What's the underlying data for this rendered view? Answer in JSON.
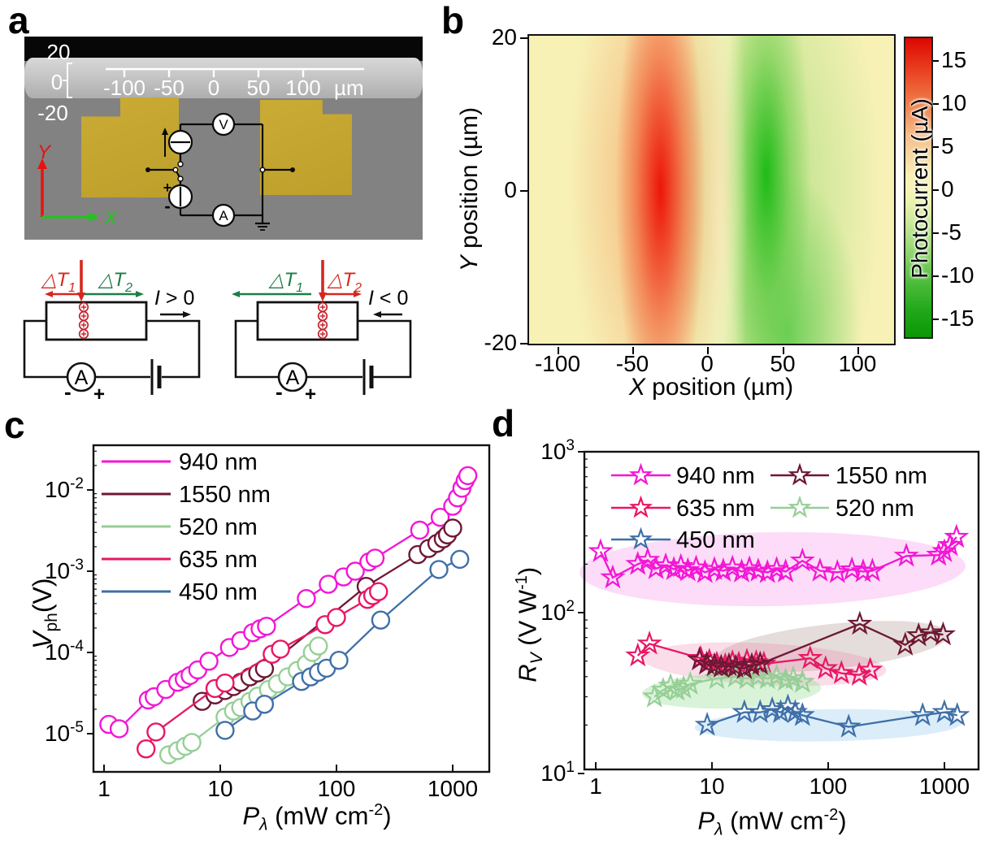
{
  "panels": {
    "a": {
      "panel_label": "a",
      "sem": {
        "y_scale_labels": [
          "20",
          "0",
          "-20"
        ],
        "ruler_labels": [
          "-100",
          "-50",
          "0",
          "50",
          "100"
        ],
        "ruler_unit": "µm",
        "x_axis_label": "X",
        "y_axis_label": "Y",
        "x_axis_color": "#22c31f",
        "y_axis_color": "#e8130c",
        "voltmeter": "V",
        "ammeter": "A",
        "plus": "+",
        "minus": "-"
      },
      "schematics": {
        "left": {
          "dt1": {
            "t": "△T",
            "sub": "1"
          },
          "dt2": {
            "t": "△T",
            "sub": "2"
          },
          "dt1_color": "#d5281e",
          "dt2_color": "#1e7d46",
          "current": {
            "sym": "I",
            "rel": " > 0"
          },
          "ammeter": "A",
          "minus": "-",
          "plus": "+"
        },
        "right": {
          "dt1": {
            "t": "△T",
            "sub": "1"
          },
          "dt2": {
            "t": "△T",
            "sub": "2"
          },
          "dt1_color": "#1e7d46",
          "dt2_color": "#d5281e",
          "current": {
            "sym": "I",
            "rel": " < 0"
          },
          "ammeter": "A",
          "minus": "-",
          "plus": "+"
        }
      }
    },
    "b": {
      "panel_label": "b"
    },
    "c": {
      "panel_label": "c",
      "xlabel_parts": {
        "main": "P",
        "sub": "λ",
        "rest": " (mW cm",
        "sup": "-2",
        "close": ")"
      },
      "ylabel_parts": {
        "main": "V",
        "sub": "ph",
        "rest": "(V)"
      }
    },
    "d": {
      "panel_label": "d",
      "xlabel_parts": {
        "main": "P",
        "sub": "λ",
        "rest": " (mW cm",
        "sup": "-2",
        "close": ")"
      },
      "ylabel_parts": {
        "main": "R",
        "sub": "V",
        "rest": " (V W",
        "sup": "-1",
        "close": ")"
      }
    }
  },
  "chart_data": [
    {
      "id": "b",
      "type": "heatmap",
      "xlabel_main": "X",
      "xlabel_rest": " position  (µm)",
      "ylabel_main": "Y",
      "ylabel_rest": " position (µm)",
      "xlim": [
        -120,
        125
      ],
      "ylim": [
        -20,
        20
      ],
      "x_ticks": [
        "-100",
        "-50",
        "0",
        "50",
        "100"
      ],
      "y_ticks": [
        "20",
        "0",
        "-20"
      ],
      "colorbar": {
        "label": "Photocurrent (µA)",
        "ticks": [
          "15",
          "10",
          "5",
          "0",
          "-5",
          "-10",
          "-15"
        ],
        "max_color": "#dd0700",
        "zero_color": "#f8f0b4",
        "min_color": "#0b9804"
      },
      "features": [
        {
          "name": "positive-photocurrent-lobe",
          "center_x_um": -32,
          "center_y_um": 0,
          "peak_uA": 17,
          "color": "#ec0c02"
        },
        {
          "name": "negative-photocurrent-lobe",
          "center_x_um": 45,
          "center_y_um": 0,
          "peak_uA": -17,
          "color": "#0eb70a"
        }
      ]
    },
    {
      "id": "c",
      "type": "scatter",
      "marker": "circle",
      "x_ticks": [
        {
          "label": "1",
          "v": 1
        },
        {
          "label": "10",
          "v": 10
        },
        {
          "label": "100",
          "v": 100
        },
        {
          "label": "1000",
          "v": 1000
        }
      ],
      "y_ticks": [
        {
          "base": "10",
          "exp": "-2",
          "v": 0.01
        },
        {
          "base": "10",
          "exp": "-3",
          "v": 0.001
        },
        {
          "base": "10",
          "exp": "-4",
          "v": 0.0001
        },
        {
          "base": "10",
          "exp": "-5",
          "v": 1e-05
        }
      ],
      "xlim": [
        0.75,
        2100
      ],
      "ylim": [
        3.4e-06,
        0.035
      ],
      "series": [
        {
          "name": "940 nm",
          "color": "#f316d5",
          "points": [
            [
              1.1,
              1.3e-05
            ],
            [
              1.35,
              1.15e-05
            ],
            [
              2.4,
              2.6e-05
            ],
            [
              2.7,
              2.85e-05
            ],
            [
              3.4,
              3.5e-05
            ],
            [
              4.3,
              4.3e-05
            ],
            [
              4.9,
              4.7e-05
            ],
            [
              5.5,
              5.2e-05
            ],
            [
              6.4,
              6.1e-05
            ],
            [
              8,
              7.8e-05
            ],
            [
              12,
              0.000115
            ],
            [
              15,
              0.00014
            ],
            [
              19,
              0.000175
            ],
            [
              22,
              0.000195
            ],
            [
              25,
              0.00021
            ],
            [
              55,
              0.00046
            ],
            [
              85,
              0.00069
            ],
            [
              115,
              0.00085
            ],
            [
              145,
              0.001
            ],
            [
              190,
              0.0013
            ],
            [
              215,
              0.00145
            ],
            [
              520,
              0.0032
            ],
            [
              780,
              0.0046
            ],
            [
              1000,
              0.0063
            ],
            [
              1100,
              0.008
            ],
            [
              1200,
              0.0105
            ],
            [
              1280,
              0.013
            ],
            [
              1350,
              0.015
            ]
          ]
        },
        {
          "name": "1550 nm",
          "color": "#6e1834",
          "points": [
            [
              7,
              2.5e-05
            ],
            [
              9,
              3e-05
            ],
            [
              11,
              3.4e-05
            ],
            [
              13,
              3.8e-05
            ],
            [
              15,
              4.3e-05
            ],
            [
              18,
              5e-05
            ],
            [
              21,
              5.6e-05
            ],
            [
              24,
              6.3e-05
            ],
            [
              180,
              0.00065
            ],
            [
              500,
              0.0016
            ],
            [
              620,
              0.0019
            ],
            [
              730,
              0.0022
            ],
            [
              830,
              0.0025
            ],
            [
              900,
              0.0028
            ],
            [
              1000,
              0.0034
            ]
          ]
        },
        {
          "name": "520 nm",
          "color": "#96cf96",
          "points": [
            [
              3.6,
              5.5e-06
            ],
            [
              4.3,
              6.2e-06
            ],
            [
              5,
              7e-06
            ],
            [
              5.7,
              7.8e-06
            ],
            [
              11,
              1.6e-05
            ],
            [
              13,
              1.9e-05
            ],
            [
              15,
              2.1e-05
            ],
            [
              18,
              2.5e-05
            ],
            [
              21,
              2.9e-05
            ],
            [
              26,
              3.5e-05
            ],
            [
              31,
              4.1e-05
            ],
            [
              38,
              5e-05
            ],
            [
              46,
              6e-05
            ],
            [
              55,
              7.2e-05
            ],
            [
              62,
              0.0001
            ],
            [
              70,
              0.00012
            ]
          ]
        },
        {
          "name": "635 nm",
          "color": "#e81765",
          "points": [
            [
              2.3,
              6.5e-06
            ],
            [
              2.8,
              1.05e-05
            ],
            [
              9,
              3.6e-05
            ],
            [
              11,
              4.2e-05
            ],
            [
              28,
              9.5e-05
            ],
            [
              33,
              0.00011
            ],
            [
              80,
              0.00022
            ],
            [
              100,
              0.00027
            ],
            [
              185,
              0.00045
            ],
            [
              205,
              0.0005
            ],
            [
              230,
              0.00056
            ]
          ]
        },
        {
          "name": "450 nm",
          "color": "#3f6fa8",
          "points": [
            [
              11,
              1.1e-05
            ],
            [
              19,
              1.9e-05
            ],
            [
              24,
              2.3e-05
            ],
            [
              50,
              4.4e-05
            ],
            [
              60,
              5e-05
            ],
            [
              70,
              5.7e-05
            ],
            [
              82,
              6.4e-05
            ],
            [
              105,
              8e-05
            ],
            [
              240,
              0.00025
            ],
            [
              760,
              0.00105
            ],
            [
              1150,
              0.0014
            ]
          ]
        }
      ]
    },
    {
      "id": "d",
      "type": "scatter",
      "marker": "star",
      "x_ticks": [
        {
          "label": "1",
          "v": 1
        },
        {
          "label": "10",
          "v": 10
        },
        {
          "label": "100",
          "v": 100
        },
        {
          "label": "1000",
          "v": 1000
        }
      ],
      "y_ticks": [
        {
          "base": "10",
          "exp": "3",
          "v": 1000
        },
        {
          "base": "10",
          "exp": "2",
          "v": 100
        },
        {
          "base": "10",
          "exp": "1",
          "v": 10
        }
      ],
      "xlim": [
        0.8,
        2100
      ],
      "ylim": [
        10,
        1000
      ],
      "legend_rows": [
        [
          "940 nm",
          "1550 nm"
        ],
        [
          "635 nm",
          "520 nm"
        ],
        [
          "450 nm"
        ]
      ],
      "ellipses": [
        {
          "series": "940 nm",
          "cx_log": 1.52,
          "cy_log": 2.27,
          "rx_log": 1.66,
          "ry_log": 0.23,
          "rot": -1,
          "color": "rgba(246,140,232,0.30)"
        },
        {
          "series": "1550 nm",
          "cx_log": 2.04,
          "cy_log": 1.79,
          "rx_log": 1.01,
          "ry_log": 0.14,
          "rot": -6,
          "color": "rgba(150,120,110,0.25)"
        },
        {
          "series": "635 nm",
          "cx_log": 1.45,
          "cy_log": 1.68,
          "rx_log": 1.05,
          "ry_log": 0.13,
          "rot": 3,
          "color": "rgba(235,120,165,0.25)"
        },
        {
          "series": "520 nm",
          "cx_log": 1.17,
          "cy_log": 1.515,
          "rx_log": 0.77,
          "ry_log": 0.11,
          "rot": -2,
          "color": "rgba(130,215,130,0.30)"
        },
        {
          "series": "450 nm",
          "cx_log": 2.0,
          "cy_log": 1.3,
          "rx_log": 1.15,
          "ry_log": 0.1,
          "rot": -1,
          "color": "rgba(145,200,238,0.33)"
        }
      ],
      "series": [
        {
          "name": "635 nm",
          "color": "#e81765",
          "points": [
            [
              2.3,
              54
            ],
            [
              2.9,
              64
            ],
            [
              8,
              52
            ],
            [
              9.5,
              50
            ],
            [
              11,
              48
            ],
            [
              13,
              47
            ],
            [
              15,
              49
            ],
            [
              17,
              48
            ],
            [
              20,
              50
            ],
            [
              24,
              49
            ],
            [
              28,
              48
            ],
            [
              70,
              52
            ],
            [
              95,
              45
            ],
            [
              130,
              42
            ],
            [
              185,
              41
            ],
            [
              230,
              44
            ]
          ]
        },
        {
          "name": "520 nm",
          "color": "#96cf96",
          "points": [
            [
              3.2,
              30
            ],
            [
              3.8,
              33
            ],
            [
              4.4,
              35
            ],
            [
              5,
              33
            ],
            [
              5.7,
              34
            ],
            [
              6.5,
              36
            ],
            [
              11,
              39
            ],
            [
              16,
              40
            ],
            [
              20,
              39
            ],
            [
              25,
              40
            ],
            [
              30,
              39
            ],
            [
              36,
              40
            ],
            [
              43,
              38
            ],
            [
              50,
              39
            ],
            [
              60,
              37
            ]
          ]
        },
        {
          "name": "450 nm",
          "color": "#3f6fa8",
          "points": [
            [
              9.1,
              20
            ],
            [
              19,
              24
            ],
            [
              26,
              24
            ],
            [
              33,
              25
            ],
            [
              39,
              24
            ],
            [
              45,
              26
            ],
            [
              52,
              24
            ],
            [
              60,
              23
            ],
            [
              150,
              19.5
            ],
            [
              650,
              23
            ],
            [
              1000,
              24
            ],
            [
              1290,
              23
            ]
          ]
        },
        {
          "name": "1550 nm",
          "color": "#6e1834",
          "points": [
            [
              7.8,
              51
            ],
            [
              9,
              48
            ],
            [
              10.5,
              47
            ],
            [
              12,
              46
            ],
            [
              14,
              47
            ],
            [
              16,
              46
            ],
            [
              19,
              45
            ],
            [
              22,
              47
            ],
            [
              26,
              48
            ],
            [
              187,
              85
            ],
            [
              460,
              63
            ],
            [
              600,
              72
            ],
            [
              760,
              75
            ],
            [
              975,
              73
            ]
          ]
        },
        {
          "name": "940 nm",
          "color": "#f316d5",
          "points": [
            [
              1.1,
              240
            ],
            [
              1.4,
              165
            ],
            [
              2.3,
              200
            ],
            [
              2.8,
              212
            ],
            [
              3.3,
              188
            ],
            [
              4,
              196
            ],
            [
              4.7,
              186
            ],
            [
              5.4,
              194
            ],
            [
              6.2,
              183
            ],
            [
              7.3,
              190
            ],
            [
              8.7,
              178
            ],
            [
              10.5,
              186
            ],
            [
              12.5,
              182
            ],
            [
              15,
              190
            ],
            [
              18,
              180
            ],
            [
              21,
              188
            ],
            [
              25,
              182
            ],
            [
              30,
              178
            ],
            [
              36,
              186
            ],
            [
              43,
              180
            ],
            [
              60,
              210
            ],
            [
              85,
              182
            ],
            [
              120,
              178
            ],
            [
              160,
              185
            ],
            [
              200,
              180
            ],
            [
              240,
              182
            ],
            [
              470,
              225
            ],
            [
              890,
              228
            ],
            [
              1000,
              240
            ],
            [
              1120,
              262
            ],
            [
              1270,
              295
            ]
          ]
        }
      ]
    }
  ]
}
